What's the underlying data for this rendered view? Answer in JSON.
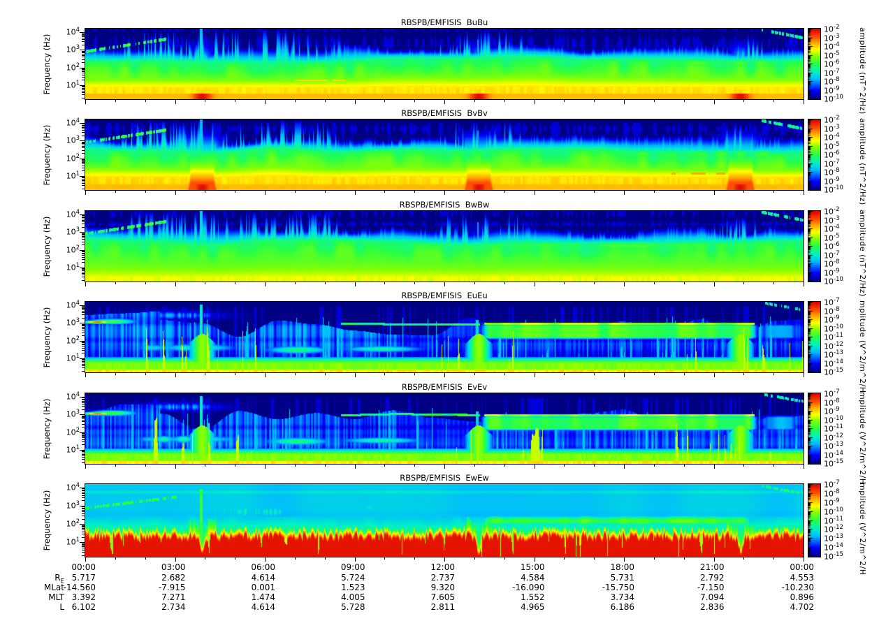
{
  "figure": {
    "background": "#ffffff",
    "text_color": "#000000"
  },
  "chart_data": {
    "type": "heatmap",
    "description": "Six stacked frequency-time spectrogram panels (magnetic BuBu/BvBv/BwBw and electric EuEu/EvEv/EwEw spectral power), rainbow colormap over white page, black below color floor.",
    "x_axis": {
      "span_hours": 24,
      "major_tick_every_hours": 3,
      "minor_tick_every_hours": 1,
      "tick_labels": [
        "00:00",
        "03:00",
        "06:00",
        "09:00",
        "12:00",
        "15:00",
        "18:00",
        "21:00",
        "00:00"
      ]
    },
    "y_axis": {
      "label": "Frequency (Hz)",
      "scale": "log",
      "tick_exponents": [
        1,
        2,
        3,
        4
      ],
      "range_exponents": [
        0.25,
        4.2
      ]
    },
    "colormap": {
      "floor_color": "#000000",
      "stops": [
        {
          "pos": 0.0,
          "color": "#000082"
        },
        {
          "pos": 0.12,
          "color": "#0000ff"
        },
        {
          "pos": 0.28,
          "color": "#00baff"
        },
        {
          "pos": 0.38,
          "color": "#00f0c8"
        },
        {
          "pos": 0.5,
          "color": "#28ff46"
        },
        {
          "pos": 0.62,
          "color": "#8cff00"
        },
        {
          "pos": 0.7,
          "color": "#ffff00"
        },
        {
          "pos": 0.8,
          "color": "#ffaa00"
        },
        {
          "pos": 0.88,
          "color": "#ff5000"
        },
        {
          "pos": 1.0,
          "color": "#dc0000"
        }
      ]
    },
    "perigee_times_hours": [
      3.9,
      13.15,
      21.9
    ],
    "panels": [
      {
        "title": "RBSPB/EMFISIS  BuBu",
        "colorbar_label": "amplitude (nT^2/Hz)",
        "colorbar_tick_exponents": [
          -2,
          -3,
          -4,
          -5,
          -6,
          -7,
          -8,
          -9,
          -10
        ],
        "render": {
          "kind": "B",
          "seed": 101,
          "perigee_strength": 0.95,
          "perigee_width": 1.0,
          "red_core": true,
          "yellow_top": 0.9,
          "v_yellow": 0.75,
          "dashes": [
            {
              "t0": 6.9,
              "t1": 8.7,
              "d": 1.3,
              "v": 0.74
            }
          ]
        }
      },
      {
        "title": "RBSPB/EMFISIS  BvBv",
        "colorbar_label": "amplitude (nT^2/Hz)",
        "colorbar_tick_exponents": [
          -2,
          -3,
          -4,
          -5,
          -6,
          -7,
          -8,
          -9,
          -10
        ],
        "render": {
          "kind": "B",
          "seed": 202,
          "perigee_strength": 1.5,
          "perigee_width": 1.6,
          "red_core": true,
          "yellow_top": 0.95,
          "v_yellow": 0.76,
          "dashes": [
            {
              "t0": 19.6,
              "t1": 21.4,
              "d": 1.15,
              "v": 0.8
            }
          ]
        }
      },
      {
        "title": "RBSPB/EMFISIS  BwBw",
        "colorbar_label": "amplitude (nT^2/Hz)",
        "colorbar_tick_exponents": [
          -2,
          -3,
          -4,
          -5,
          -6,
          -7,
          -8,
          -9,
          -10
        ],
        "render": {
          "kind": "B",
          "seed": 303,
          "perigee_strength": 0.5,
          "perigee_width": 1.0,
          "red_core": false,
          "yellow_top": 0.5,
          "v_yellow": 0.7,
          "dashes": []
        }
      },
      {
        "title": "RBSPB/EMFISIS  EuEu",
        "colorbar_label": "mplitude (V^2/m^2/H",
        "colorbar_tick_exponents": [
          -7,
          -8,
          -9,
          -10,
          -11,
          -12,
          -13,
          -14,
          -15
        ],
        "render": {
          "kind": "E",
          "seed": 404
        }
      },
      {
        "title": "RBSPB/EMFISIS  EvEv",
        "colorbar_label": "mplitude (V^2/m^2/H",
        "colorbar_tick_exponents": [
          -7,
          -8,
          -9,
          -10,
          -11,
          -12,
          -13,
          -14,
          -15
        ],
        "render": {
          "kind": "E",
          "seed": 505
        }
      },
      {
        "title": "RBSPB/EMFISIS  EwEw",
        "colorbar_label": "mplitude (V^2/m^2/H",
        "colorbar_tick_exponents": [
          -7,
          -8,
          -9,
          -10,
          -11,
          -12,
          -13,
          -14,
          -15
        ],
        "render": {
          "kind": "Ew",
          "seed": 606
        }
      }
    ],
    "ephemeris": {
      "rows": [
        {
          "label": "R",
          "sub": "E",
          "values": [
            "5.717",
            "2.682",
            "4.614",
            "5.724",
            "2.737",
            "4.584",
            "5.731",
            "2.792",
            "4.553"
          ]
        },
        {
          "label": "MLat",
          "sub": "",
          "values": [
            "-14.560",
            "-7.915",
            "0.001",
            "1.523",
            "9.320",
            "-16.090",
            "-15.750",
            "-7.150",
            "-10.230"
          ]
        },
        {
          "label": "MLT",
          "sub": "",
          "values": [
            "3.392",
            "7.271",
            "1.474",
            "4.005",
            "7.605",
            "1.552",
            "3.734",
            "7.094",
            "0.896"
          ]
        },
        {
          "label": "L",
          "sub": "",
          "values": [
            "6.102",
            "2.734",
            "4.614",
            "5.728",
            "2.811",
            "4.965",
            "6.186",
            "2.836",
            "4.702"
          ]
        }
      ]
    }
  }
}
